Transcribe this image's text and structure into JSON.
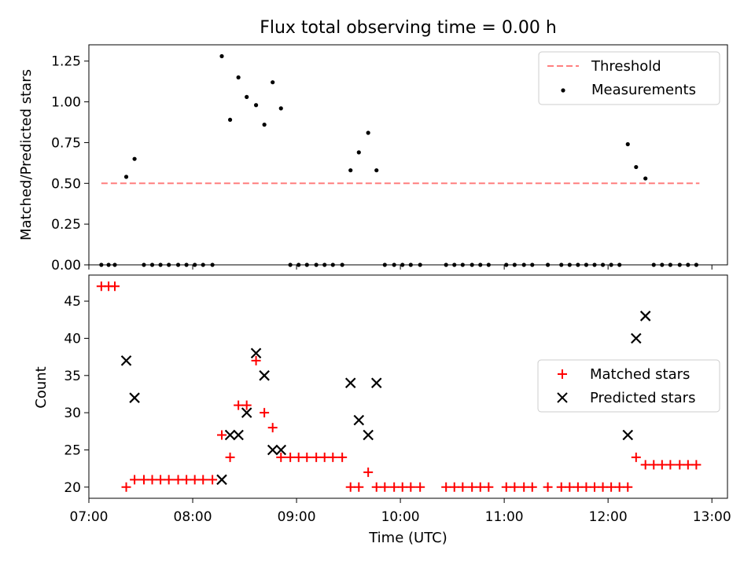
{
  "chart_data": [
    {
      "type": "scatter",
      "title": "Flux total observing time = 0.00 h",
      "xlabel": "",
      "ylabel": "Matched/Predicted stars",
      "xlim": [
        7.0,
        13.15
      ],
      "ylim": [
        0.0,
        1.35
      ],
      "yticks": [
        {
          "v": 0.0,
          "label": "0.00"
        },
        {
          "v": 0.25,
          "label": "0.25"
        },
        {
          "v": 0.5,
          "label": "0.50"
        },
        {
          "v": 0.75,
          "label": "0.75"
        },
        {
          "v": 1.0,
          "label": "1.00"
        },
        {
          "v": 1.25,
          "label": "1.25"
        }
      ],
      "legend": {
        "position": "upper-right",
        "threshold_label": "Threshold",
        "measurements_label": "Measurements"
      },
      "colors": {
        "threshold": "#ff7f7f",
        "measurements": "#000000"
      },
      "threshold": {
        "value": 0.5,
        "x_range": [
          7.12,
          12.88
        ]
      },
      "measurements": [
        [
          7.12,
          0
        ],
        [
          7.19,
          0
        ],
        [
          7.25,
          0
        ],
        [
          7.36,
          0.54
        ],
        [
          7.44,
          0.65
        ],
        [
          7.53,
          0
        ],
        [
          7.61,
          0
        ],
        [
          7.69,
          0
        ],
        [
          7.77,
          0
        ],
        [
          7.86,
          0
        ],
        [
          7.94,
          0
        ],
        [
          8.02,
          0
        ],
        [
          8.1,
          0
        ],
        [
          8.19,
          0
        ],
        [
          8.28,
          1.28
        ],
        [
          8.36,
          0.89
        ],
        [
          8.44,
          1.15
        ],
        [
          8.52,
          1.03
        ],
        [
          8.61,
          0.98
        ],
        [
          8.69,
          0.86
        ],
        [
          8.77,
          1.12
        ],
        [
          8.85,
          0.96
        ],
        [
          8.94,
          0
        ],
        [
          9.02,
          0
        ],
        [
          9.1,
          0
        ],
        [
          9.19,
          0
        ],
        [
          9.27,
          0
        ],
        [
          9.35,
          0
        ],
        [
          9.44,
          0
        ],
        [
          9.52,
          0.58
        ],
        [
          9.6,
          0.69
        ],
        [
          9.69,
          0.81
        ],
        [
          9.77,
          0.58
        ],
        [
          9.85,
          0
        ],
        [
          9.94,
          0
        ],
        [
          10.02,
          0
        ],
        [
          10.1,
          0
        ],
        [
          10.19,
          0
        ],
        [
          10.44,
          0
        ],
        [
          10.52,
          0
        ],
        [
          10.6,
          0
        ],
        [
          10.69,
          0
        ],
        [
          10.77,
          0
        ],
        [
          10.85,
          0
        ],
        [
          11.02,
          0
        ],
        [
          11.1,
          0
        ],
        [
          11.19,
          0
        ],
        [
          11.27,
          0
        ],
        [
          11.42,
          0
        ],
        [
          11.55,
          0
        ],
        [
          11.63,
          0
        ],
        [
          11.71,
          0
        ],
        [
          11.79,
          0
        ],
        [
          11.87,
          0
        ],
        [
          11.95,
          0
        ],
        [
          12.03,
          0
        ],
        [
          12.11,
          0
        ],
        [
          12.19,
          0.74
        ],
        [
          12.27,
          0.6
        ],
        [
          12.36,
          0.53
        ],
        [
          12.44,
          0
        ],
        [
          12.52,
          0
        ],
        [
          12.6,
          0
        ],
        [
          12.69,
          0
        ],
        [
          12.77,
          0
        ],
        [
          12.85,
          0
        ]
      ]
    },
    {
      "type": "scatter",
      "title": "",
      "xlabel": "Time (UTC)",
      "ylabel": "Count",
      "xlim": [
        7.0,
        13.15
      ],
      "ylim": [
        18.5,
        48.5
      ],
      "yticks": [
        {
          "v": 20,
          "label": "20"
        },
        {
          "v": 25,
          "label": "25"
        },
        {
          "v": 30,
          "label": "30"
        },
        {
          "v": 35,
          "label": "35"
        },
        {
          "v": 40,
          "label": "40"
        },
        {
          "v": 45,
          "label": "45"
        }
      ],
      "xticks": [
        {
          "v": 7,
          "label": "07:00"
        },
        {
          "v": 8,
          "label": "08:00"
        },
        {
          "v": 9,
          "label": "09:00"
        },
        {
          "v": 10,
          "label": "10:00"
        },
        {
          "v": 11,
          "label": "11:00"
        },
        {
          "v": 12,
          "label": "12:00"
        },
        {
          "v": 13,
          "label": "13:00"
        }
      ],
      "legend": {
        "position": "center-right",
        "matched_label": "Matched stars",
        "predicted_label": "Predicted stars"
      },
      "colors": {
        "matched": "#ff0000",
        "predicted": "#000000"
      },
      "matched": [
        [
          7.12,
          47
        ],
        [
          7.19,
          47
        ],
        [
          7.25,
          47
        ],
        [
          7.36,
          20
        ],
        [
          7.44,
          21
        ],
        [
          7.53,
          21
        ],
        [
          7.61,
          21
        ],
        [
          7.69,
          21
        ],
        [
          7.77,
          21
        ],
        [
          7.86,
          21
        ],
        [
          7.94,
          21
        ],
        [
          8.02,
          21
        ],
        [
          8.1,
          21
        ],
        [
          8.19,
          21
        ],
        [
          8.28,
          27
        ],
        [
          8.36,
          24
        ],
        [
          8.44,
          31
        ],
        [
          8.52,
          31
        ],
        [
          8.61,
          37
        ],
        [
          8.69,
          30
        ],
        [
          8.77,
          28
        ],
        [
          8.85,
          24
        ],
        [
          8.94,
          24
        ],
        [
          9.02,
          24
        ],
        [
          9.1,
          24
        ],
        [
          9.19,
          24
        ],
        [
          9.27,
          24
        ],
        [
          9.35,
          24
        ],
        [
          9.44,
          24
        ],
        [
          9.52,
          20
        ],
        [
          9.6,
          20
        ],
        [
          9.69,
          22
        ],
        [
          9.77,
          20
        ],
        [
          9.85,
          20
        ],
        [
          9.94,
          20
        ],
        [
          10.02,
          20
        ],
        [
          10.1,
          20
        ],
        [
          10.19,
          20
        ],
        [
          10.44,
          20
        ],
        [
          10.52,
          20
        ],
        [
          10.6,
          20
        ],
        [
          10.69,
          20
        ],
        [
          10.77,
          20
        ],
        [
          10.85,
          20
        ],
        [
          11.02,
          20
        ],
        [
          11.1,
          20
        ],
        [
          11.19,
          20
        ],
        [
          11.27,
          20
        ],
        [
          11.42,
          20
        ],
        [
          11.55,
          20
        ],
        [
          11.63,
          20
        ],
        [
          11.71,
          20
        ],
        [
          11.79,
          20
        ],
        [
          11.87,
          20
        ],
        [
          11.95,
          20
        ],
        [
          12.03,
          20
        ],
        [
          12.11,
          20
        ],
        [
          12.19,
          20
        ],
        [
          12.27,
          24
        ],
        [
          12.36,
          23
        ],
        [
          12.44,
          23
        ],
        [
          12.52,
          23
        ],
        [
          12.6,
          23
        ],
        [
          12.69,
          23
        ],
        [
          12.77,
          23
        ],
        [
          12.85,
          23
        ]
      ],
      "predicted": [
        [
          7.36,
          37
        ],
        [
          7.44,
          32
        ],
        [
          8.28,
          21
        ],
        [
          8.36,
          27
        ],
        [
          8.44,
          27
        ],
        [
          8.52,
          30
        ],
        [
          8.61,
          38
        ],
        [
          8.69,
          35
        ],
        [
          8.77,
          25
        ],
        [
          8.85,
          25
        ],
        [
          9.52,
          34
        ],
        [
          9.6,
          29
        ],
        [
          9.69,
          27
        ],
        [
          9.77,
          34
        ],
        [
          12.19,
          27
        ],
        [
          12.27,
          40
        ],
        [
          12.36,
          43
        ]
      ]
    }
  ]
}
